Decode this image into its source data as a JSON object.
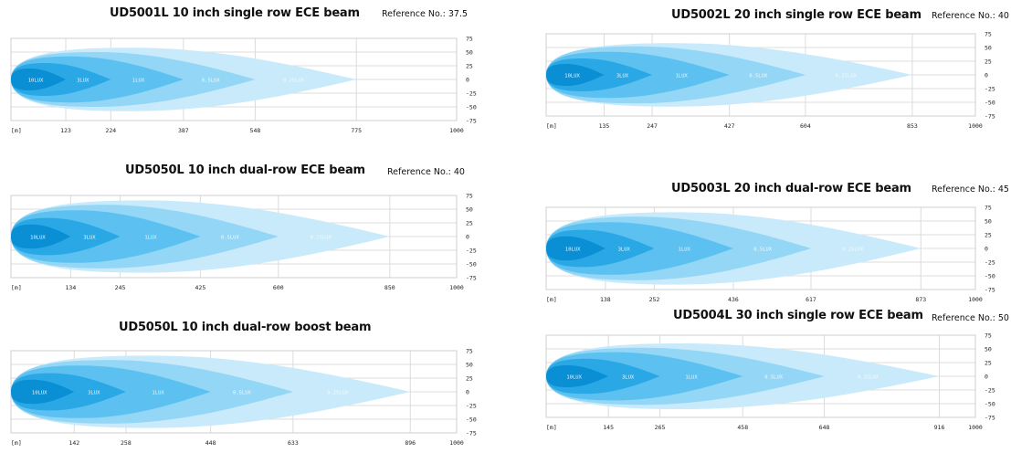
{
  "chart_data": [
    {
      "type": "area",
      "title": "UD5001L 10 inch single row ECE beam",
      "reference": "Reference No.: 37.5",
      "xunit": "[m]",
      "xticks": [
        "123",
        "224",
        "387",
        "548",
        "775",
        "1000"
      ],
      "yticks": [
        "75",
        "50",
        "25",
        "0",
        "-25",
        "-50",
        "-75"
      ],
      "xlim": [
        0,
        1000
      ],
      "ylim": [
        -75,
        75
      ],
      "grid": true,
      "zones": [
        {
          "name": "10LUX",
          "reach": 123,
          "half_width": 20
        },
        {
          "name": "3LUX",
          "reach": 224,
          "half_width": 30
        },
        {
          "name": "1LUX",
          "reach": 387,
          "half_width": 42
        },
        {
          "name": "0.5LUX",
          "reach": 548,
          "half_width": 50
        },
        {
          "name": "0.25LUX",
          "reach": 775,
          "half_width": 58
        }
      ]
    },
    {
      "type": "area",
      "title": "UD5050L 10 inch dual-row ECE beam",
      "reference": "Reference No.: 40",
      "xunit": "[m]",
      "xticks": [
        "134",
        "245",
        "425",
        "600",
        "850",
        "1000"
      ],
      "yticks": [
        "75",
        "50",
        "25",
        "0",
        "-25",
        "-50",
        "-75"
      ],
      "xlim": [
        0,
        1000
      ],
      "ylim": [
        -75,
        75
      ],
      "grid": true,
      "zones": [
        {
          "name": "10LUX",
          "reach": 134,
          "half_width": 22
        },
        {
          "name": "3LUX",
          "reach": 245,
          "half_width": 34
        },
        {
          "name": "1LUX",
          "reach": 425,
          "half_width": 48
        },
        {
          "name": "0.5LUX",
          "reach": 600,
          "half_width": 58
        },
        {
          "name": "0.25LUX",
          "reach": 850,
          "half_width": 66
        }
      ]
    },
    {
      "type": "area",
      "title": "UD5050L 10 inch dual-row boost beam",
      "reference": "",
      "xunit": "[m]",
      "xticks": [
        "142",
        "258",
        "448",
        "633",
        "896",
        "1000"
      ],
      "yticks": [
        "75",
        "50",
        "25",
        "0",
        "-25",
        "-50",
        "-75"
      ],
      "xlim": [
        0,
        1000
      ],
      "ylim": [
        -75,
        75
      ],
      "grid": true,
      "zones": [
        {
          "name": "10LUX",
          "reach": 142,
          "half_width": 22
        },
        {
          "name": "3LUX",
          "reach": 258,
          "half_width": 34
        },
        {
          "name": "1LUX",
          "reach": 448,
          "half_width": 48
        },
        {
          "name": "0.5LUX",
          "reach": 633,
          "half_width": 58
        },
        {
          "name": "0.25LUX",
          "reach": 896,
          "half_width": 66
        }
      ]
    },
    {
      "type": "area",
      "title": "UD5002L 20 inch single row ECE beam",
      "reference": "Reference No.: 40",
      "xunit": "[m]",
      "xticks": [
        "135",
        "247",
        "427",
        "604",
        "853",
        "1000"
      ],
      "yticks": [
        "75",
        "50",
        "25",
        "0",
        "-25",
        "-50",
        "-75"
      ],
      "xlim": [
        0,
        1000
      ],
      "ylim": [
        -75,
        75
      ],
      "grid": true,
      "zones": [
        {
          "name": "10LUX",
          "reach": 135,
          "half_width": 20
        },
        {
          "name": "3LUX",
          "reach": 247,
          "half_width": 30
        },
        {
          "name": "1LUX",
          "reach": 427,
          "half_width": 42
        },
        {
          "name": "0.5LUX",
          "reach": 604,
          "half_width": 52
        },
        {
          "name": "0.25LUX",
          "reach": 853,
          "half_width": 58
        }
      ]
    },
    {
      "type": "area",
      "title": "UD5003L 20 inch dual-row ECE beam",
      "reference": "Reference No.: 45",
      "xunit": "[m]",
      "xticks": [
        "138",
        "252",
        "436",
        "617",
        "873",
        "1000"
      ],
      "yticks": [
        "75",
        "50",
        "25",
        "0",
        "-25",
        "-50",
        "-75"
      ],
      "xlim": [
        0,
        1000
      ],
      "ylim": [
        -75,
        75
      ],
      "grid": true,
      "zones": [
        {
          "name": "10LUX",
          "reach": 138,
          "half_width": 22
        },
        {
          "name": "3LUX",
          "reach": 252,
          "half_width": 34
        },
        {
          "name": "1LUX",
          "reach": 436,
          "half_width": 48
        },
        {
          "name": "0.5LUX",
          "reach": 617,
          "half_width": 58
        },
        {
          "name": "0.25LUX",
          "reach": 873,
          "half_width": 66
        }
      ]
    },
    {
      "type": "area",
      "title": "UD5004L 30 inch single row ECE beam",
      "reference": "Reference No.: 50",
      "xunit": "[m]",
      "xticks": [
        "145",
        "265",
        "458",
        "648",
        "916",
        "1000"
      ],
      "yticks": [
        "75",
        "50",
        "25",
        "0",
        "-25",
        "-50",
        "-75"
      ],
      "xlim": [
        0,
        1000
      ],
      "ylim": [
        -75,
        75
      ],
      "grid": true,
      "zones": [
        {
          "name": "10LUX",
          "reach": 145,
          "half_width": 20
        },
        {
          "name": "3LUX",
          "reach": 265,
          "half_width": 32
        },
        {
          "name": "1LUX",
          "reach": 458,
          "half_width": 44
        },
        {
          "name": "0.5LUX",
          "reach": 648,
          "half_width": 52
        },
        {
          "name": "0.25LUX",
          "reach": 916,
          "half_width": 60
        }
      ]
    }
  ],
  "zone_colors": [
    "#0a8fd4",
    "#2aa8e6",
    "#5cc1f0",
    "#93d6f5",
    "#c8eafa"
  ],
  "zone_label_colors": [
    "#e9f6fd",
    "#e9f6fd",
    "#e9f6fd",
    "#f4fbff",
    "#f4fbff"
  ]
}
